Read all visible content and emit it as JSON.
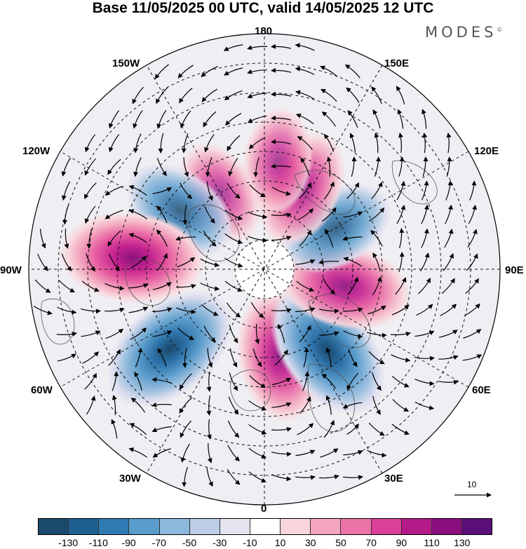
{
  "title": "Base 11/05/2025 00 UTC, valid 14/05/2025 12 UTC",
  "brand": "MODES",
  "brand_mark": "©",
  "longitude_labels": {
    "lon_180": "180",
    "lon_150E": "150E",
    "lon_120E": "120E",
    "lon_90E": "90E",
    "lon_60E": "60E",
    "lon_30E": "30E",
    "lon_0": "0",
    "lon_30W": "30W",
    "lon_60W": "60W",
    "lon_90W": "90W",
    "lon_120W": "120W",
    "lon_150W": "150W"
  },
  "reference_vector": {
    "label": "10"
  },
  "colorbar": {
    "colors": [
      "#1a4a6b",
      "#1e5f91",
      "#2f7ab3",
      "#5a9ccb",
      "#8db7dc",
      "#bccde6",
      "#e4e4f0",
      "#ffffff",
      "#f9d6dc",
      "#f4a6be",
      "#ec73a8",
      "#dc3f97",
      "#b41a88",
      "#8a0e7d",
      "#5b0f78"
    ],
    "tick_labels": [
      "-130",
      "-110",
      "-90",
      "-70",
      "-50",
      "-30",
      "-10",
      "10",
      "30",
      "50",
      "70",
      "90",
      "110",
      "130"
    ]
  },
  "anomaly_centers": [
    {
      "type": "positive",
      "lat": 60,
      "lon": 10,
      "intensity": 90
    },
    {
      "type": "negative",
      "lat": 55,
      "lon": 38,
      "intensity": -110
    },
    {
      "type": "positive",
      "lat": 62,
      "lon": 78,
      "intensity": 90
    },
    {
      "type": "negative",
      "lat": 62,
      "lon": 120,
      "intensity": -70
    },
    {
      "type": "positive",
      "lat": 60,
      "lon": 155,
      "intensity": 70
    },
    {
      "type": "positive",
      "lat": 53,
      "lon": 173,
      "intensity": 50
    },
    {
      "type": "positive",
      "lat": 60,
      "lon": -150,
      "intensity": 50
    },
    {
      "type": "negative",
      "lat": 55,
      "lon": -125,
      "intensity": -70
    },
    {
      "type": "positive",
      "lat": 45,
      "lon": -95,
      "intensity": 110
    },
    {
      "type": "negative",
      "lat": 48,
      "lon": -50,
      "intensity": -110
    }
  ]
}
